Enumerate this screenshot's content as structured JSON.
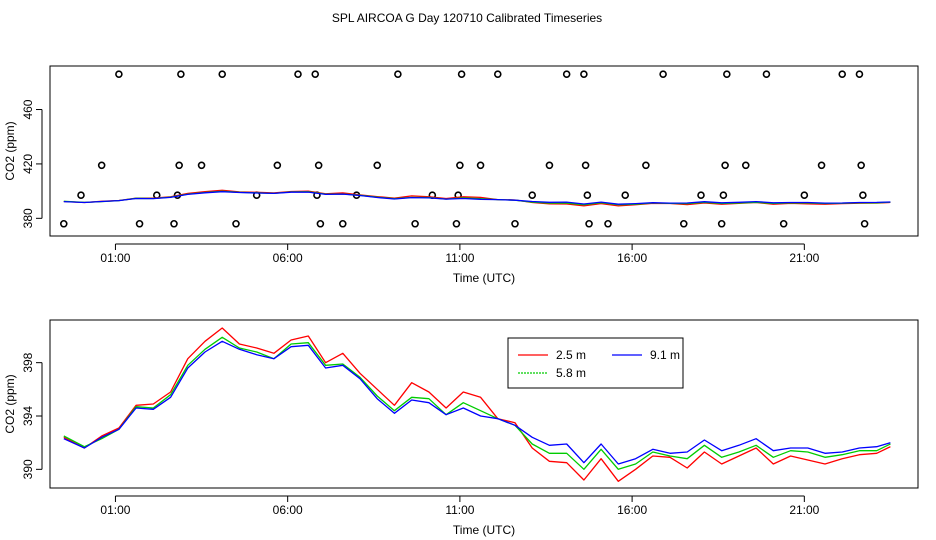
{
  "chart_data": [
    {
      "type": "scatter",
      "title": "SPL AIRCOA G  Day 120710  Calibrated Timeseries",
      "xlabel": "Time (UTC)",
      "ylabel": "CO2 (ppm)",
      "xlim": [
        -0.9,
        24.3
      ],
      "ylim": [
        367,
        492
      ],
      "x_ticks": [
        1,
        6,
        11,
        16,
        21
      ],
      "x_tick_labels": [
        "01:00",
        "06:00",
        "11:00",
        "16:00",
        "21:00"
      ],
      "y_ticks": [
        380,
        420,
        460
      ],
      "y_tick_labels": [
        "380",
        "420",
        "460"
      ],
      "points": [
        [
          -0.5,
          376
        ],
        [
          0.0,
          397
        ],
        [
          0.6,
          419
        ],
        [
          1.1,
          486
        ],
        [
          1.7,
          376
        ],
        [
          2.2,
          397
        ],
        [
          2.7,
          376
        ],
        [
          2.8,
          397
        ],
        [
          2.85,
          419
        ],
        [
          2.9,
          486
        ],
        [
          3.5,
          419
        ],
        [
          4.1,
          486
        ],
        [
          4.5,
          376
        ],
        [
          5.1,
          397
        ],
        [
          5.7,
          419
        ],
        [
          6.3,
          486
        ],
        [
          6.8,
          486
        ],
        [
          6.85,
          397
        ],
        [
          6.9,
          419
        ],
        [
          6.95,
          376
        ],
        [
          7.6,
          376
        ],
        [
          8.0,
          397
        ],
        [
          8.6,
          419
        ],
        [
          9.2,
          486
        ],
        [
          9.7,
          376
        ],
        [
          10.2,
          397
        ],
        [
          10.9,
          376
        ],
        [
          10.95,
          397
        ],
        [
          11.0,
          419
        ],
        [
          11.05,
          486
        ],
        [
          11.6,
          419
        ],
        [
          12.1,
          486
        ],
        [
          12.6,
          376
        ],
        [
          13.1,
          397
        ],
        [
          13.6,
          419
        ],
        [
          14.1,
          486
        ],
        [
          14.6,
          486
        ],
        [
          14.65,
          419
        ],
        [
          14.7,
          397
        ],
        [
          14.75,
          376
        ],
        [
          15.3,
          376
        ],
        [
          15.8,
          397
        ],
        [
          16.4,
          419
        ],
        [
          16.9,
          486
        ],
        [
          17.5,
          376
        ],
        [
          18.0,
          397
        ],
        [
          18.6,
          376
        ],
        [
          18.65,
          397
        ],
        [
          18.7,
          419
        ],
        [
          18.75,
          486
        ],
        [
          19.3,
          419
        ],
        [
          19.9,
          486
        ],
        [
          20.4,
          376
        ],
        [
          21.0,
          397
        ],
        [
          21.5,
          419
        ],
        [
          22.1,
          486
        ],
        [
          22.6,
          486
        ],
        [
          22.65,
          419
        ],
        [
          22.7,
          397
        ],
        [
          22.75,
          376
        ]
      ],
      "series": [
        {
          "name": "2.5 m",
          "color": "#ff0000"
        },
        {
          "name": "9.1 m",
          "color": "#0000ff"
        },
        {
          "name": "5.8 m",
          "color": "#00cc00"
        }
      ]
    },
    {
      "type": "line",
      "title": "",
      "xlabel": "Time (UTC)",
      "ylabel": "CO2 (ppm)",
      "xlim": [
        -0.9,
        24.3
      ],
      "ylim": [
        388.6,
        401.2
      ],
      "x_ticks": [
        1,
        6,
        11,
        16,
        21
      ],
      "x_tick_labels": [
        "01:00",
        "06:00",
        "11:00",
        "16:00",
        "21:00"
      ],
      "y_ticks": [
        390,
        394,
        398
      ],
      "y_tick_labels": [
        "390",
        "394",
        "398"
      ],
      "legend": [
        {
          "label": "2.5 m",
          "color": "#ff0000"
        },
        {
          "label": "9.1 m",
          "color": "#0000ff"
        },
        {
          "label": "5.8 m",
          "color": "#00cc00"
        }
      ],
      "series": [
        {
          "name": "2.5 m",
          "color": "#ff0000",
          "x": [
            -0.5,
            0.1,
            0.6,
            1.1,
            1.6,
            2.1,
            2.6,
            3.1,
            3.6,
            4.1,
            4.6,
            5.1,
            5.6,
            6.1,
            6.6,
            7.1,
            7.6,
            8.1,
            8.6,
            9.1,
            9.6,
            10.1,
            10.6,
            11.1,
            11.6,
            12.1,
            12.6,
            13.1,
            13.6,
            14.1,
            14.6,
            15.1,
            15.6,
            16.1,
            16.6,
            17.1,
            17.6,
            18.1,
            18.6,
            19.1,
            19.6,
            20.1,
            20.6,
            21.1,
            21.6,
            22.1,
            22.6,
            23.1,
            23.5
          ],
          "values": [
            392.4,
            391.6,
            392.5,
            393.1,
            394.8,
            394.9,
            395.8,
            398.3,
            399.6,
            400.6,
            399.4,
            399.1,
            398.7,
            399.7,
            400.0,
            398.0,
            398.7,
            397.2,
            396.0,
            394.8,
            396.5,
            395.8,
            394.6,
            395.8,
            395.4,
            393.8,
            393.5,
            391.6,
            390.6,
            390.5,
            389.2,
            390.8,
            389.1,
            390.0,
            391.0,
            390.9,
            390.1,
            391.3,
            390.4,
            391.0,
            391.6,
            390.4,
            391.0,
            390.7,
            390.4,
            390.8,
            391.1,
            391.2,
            391.7
          ]
        },
        {
          "name": "5.8 m",
          "color": "#00cc00",
          "x": [
            -0.5,
            0.1,
            0.6,
            1.1,
            1.6,
            2.1,
            2.6,
            3.1,
            3.6,
            4.1,
            4.6,
            5.1,
            5.6,
            6.1,
            6.6,
            7.1,
            7.6,
            8.1,
            8.6,
            9.1,
            9.6,
            10.1,
            10.6,
            11.1,
            11.6,
            12.1,
            12.6,
            13.1,
            13.6,
            14.1,
            14.6,
            15.1,
            15.6,
            16.1,
            16.6,
            17.1,
            17.6,
            18.1,
            18.6,
            19.1,
            19.6,
            20.1,
            20.6,
            21.1,
            21.6,
            22.1,
            22.6,
            23.1,
            23.5
          ],
          "values": [
            392.5,
            391.7,
            392.3,
            393.0,
            394.7,
            394.6,
            395.6,
            397.8,
            399.0,
            399.9,
            399.1,
            398.8,
            398.3,
            399.4,
            399.5,
            397.8,
            397.9,
            396.9,
            395.5,
            394.4,
            395.4,
            395.3,
            394.1,
            395.0,
            394.4,
            393.8,
            393.3,
            391.9,
            391.2,
            391.2,
            390.0,
            391.5,
            390.0,
            390.4,
            391.3,
            391.0,
            390.8,
            391.8,
            390.9,
            391.3,
            391.8,
            390.9,
            391.4,
            391.3,
            390.9,
            391.1,
            391.4,
            391.4,
            391.9
          ]
        },
        {
          "name": "9.1 m",
          "color": "#0000ff",
          "x": [
            -0.5,
            0.1,
            0.6,
            1.1,
            1.6,
            2.1,
            2.6,
            3.1,
            3.6,
            4.1,
            4.6,
            5.1,
            5.6,
            6.1,
            6.6,
            7.1,
            7.6,
            8.1,
            8.6,
            9.1,
            9.6,
            10.1,
            10.6,
            11.1,
            11.6,
            12.1,
            12.6,
            13.1,
            13.6,
            14.1,
            14.6,
            15.1,
            15.6,
            16.1,
            16.6,
            17.1,
            17.6,
            18.1,
            18.6,
            19.1,
            19.6,
            20.1,
            20.6,
            21.1,
            21.6,
            22.1,
            22.6,
            23.1,
            23.5
          ],
          "values": [
            392.3,
            391.6,
            392.4,
            393.0,
            394.6,
            394.5,
            395.4,
            397.6,
            398.8,
            399.6,
            399.0,
            398.6,
            398.3,
            399.2,
            399.3,
            397.6,
            397.8,
            396.8,
            395.3,
            394.2,
            395.2,
            395.0,
            394.1,
            394.6,
            394.0,
            393.8,
            393.3,
            392.4,
            391.8,
            391.9,
            390.5,
            391.9,
            390.4,
            390.8,
            391.5,
            391.2,
            391.3,
            392.2,
            391.4,
            391.8,
            392.3,
            391.4,
            391.6,
            391.6,
            391.2,
            391.3,
            391.6,
            391.7,
            392.0
          ]
        }
      ]
    }
  ]
}
